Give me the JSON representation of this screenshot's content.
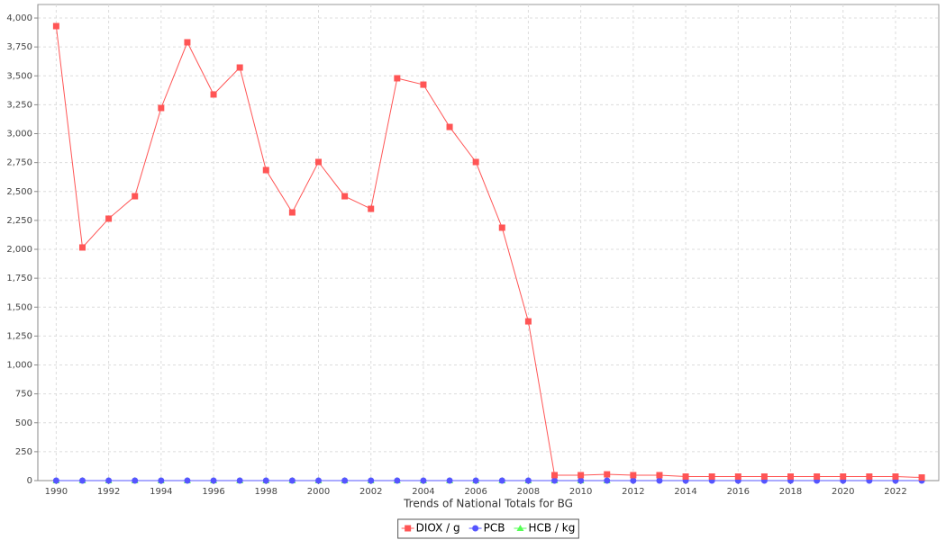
{
  "chart_data": {
    "type": "line",
    "x_label": "Trends of National Totals for BG",
    "x": [
      1990,
      1991,
      1992,
      1993,
      1994,
      1995,
      1996,
      1997,
      1998,
      1999,
      2000,
      2001,
      2002,
      2003,
      2004,
      2005,
      2006,
      2007,
      2008,
      2009,
      2010,
      2011,
      2012,
      2013,
      2014,
      2015,
      2016,
      2017,
      2018,
      2019,
      2020,
      2021,
      2022,
      2023
    ],
    "xlim": [
      1989.3,
      2023.65
    ],
    "xticks": [
      1990,
      1992,
      1994,
      1996,
      1998,
      2000,
      2002,
      2004,
      2006,
      2008,
      2010,
      2012,
      2014,
      2016,
      2018,
      2020,
      2022
    ],
    "ylim": [
      0,
      4117
    ],
    "yticks": [
      0,
      250,
      500,
      750,
      {
        "value": 1000,
        "label": "1,000"
      },
      {
        "value": 1250,
        "label": "1,250"
      },
      {
        "value": 1500,
        "label": "1,500"
      },
      {
        "value": 1750,
        "label": "1,750"
      },
      {
        "value": 2000,
        "label": "2,000"
      },
      {
        "value": 2250,
        "label": "2,250"
      },
      {
        "value": 2500,
        "label": "2,500"
      },
      {
        "value": 2750,
        "label": "2,750"
      },
      {
        "value": 3000,
        "label": "3,000"
      },
      {
        "value": 3250,
        "label": "3,250"
      },
      {
        "value": 3500,
        "label": "3,500"
      },
      {
        "value": 3750,
        "label": "3,750"
      },
      {
        "value": 4000,
        "label": "4,000"
      }
    ],
    "grid": true,
    "legend": "bottom",
    "series": [
      {
        "name": "DIOX / g",
        "color": "#ff5555",
        "marker": "square",
        "values": [
          3930,
          2016,
          2265,
          2459,
          3222,
          3790,
          3339,
          3572,
          2685,
          2319,
          2755,
          2459,
          2350,
          3479,
          3424,
          3058,
          2755,
          2187,
          1377,
          47,
          47,
          54,
          47,
          47,
          35,
          35,
          35,
          35,
          35,
          35,
          35,
          35,
          35,
          27
        ]
      },
      {
        "name": "PCB",
        "color": "#5555ff",
        "marker": "circle",
        "values": [
          0,
          0,
          0,
          0,
          0,
          0,
          0,
          0,
          0,
          0,
          0,
          0,
          0,
          0,
          0,
          0,
          0,
          0,
          0,
          0,
          0,
          0,
          0,
          0,
          0,
          0,
          0,
          0,
          0,
          0,
          0,
          0,
          0,
          0
        ]
      },
      {
        "name": "HCB / kg",
        "color": "#55ff55",
        "marker": "triangle",
        "values": [
          0,
          0,
          0,
          0,
          0,
          0,
          0,
          0,
          0,
          0,
          0,
          0,
          0,
          0,
          0,
          0,
          0,
          0,
          0,
          0,
          0,
          0,
          null,
          null,
          null,
          null,
          null,
          null,
          null,
          null,
          null,
          null,
          null,
          null
        ]
      }
    ]
  }
}
